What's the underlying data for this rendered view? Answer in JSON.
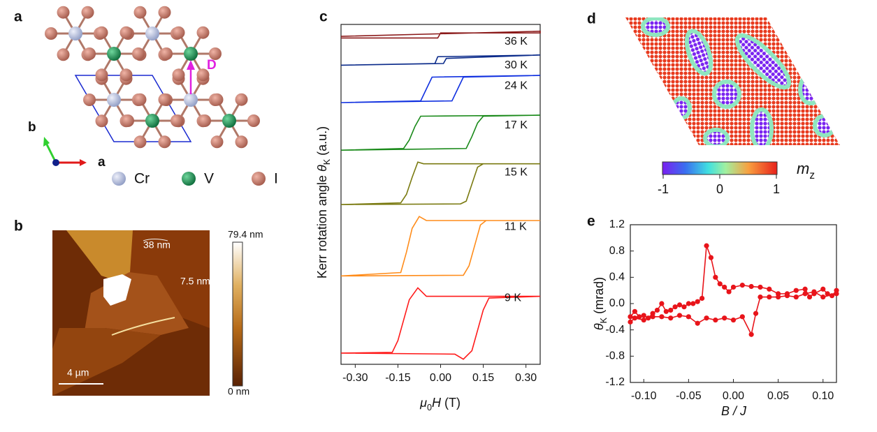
{
  "panel_labels": [
    "a",
    "b",
    "c",
    "d",
    "e"
  ],
  "panel_a": {
    "axis_labels": {
      "b": "b",
      "a": "a"
    },
    "dmi_label": "D",
    "legend": [
      "Cr",
      "V",
      "I"
    ]
  },
  "panel_b": {
    "colorbar_max": "79.4 nm",
    "colorbar_min": "0 nm",
    "scale_bar": "4 µm",
    "heights": [
      "38 nm",
      "7.5 nm"
    ]
  },
  "panel_d": {
    "colorbar": {
      "range": [
        -1,
        1
      ],
      "ticks": [
        -1,
        0,
        1
      ],
      "label": {
        "symbol": "m",
        "subscript": "z"
      }
    }
  },
  "chart_data": [
    {
      "type": "line",
      "y_label": {
        "text": "Kerr rotation angle",
        "symbol": "θ",
        "subscript": "K",
        "unit": "(a.u.)"
      },
      "x_label": {
        "symbol": "μ",
        "subscript": "0",
        "variable": "H",
        "unit": "(T)"
      },
      "xlim": [
        -0.35,
        0.35
      ],
      "xticks": [
        {
          "value": -0.3,
          "label": "-0.30"
        },
        {
          "value": -0.15,
          "label": "-0.15"
        },
        {
          "value": 0,
          "label": "0.00"
        },
        {
          "value": 0.15,
          "label": "0.15"
        },
        {
          "value": 0.3,
          "label": "0.30"
        }
      ],
      "ylim": [
        0,
        10
      ],
      "series": [
        {
          "name": "36 K",
          "color": "#8b1a1a",
          "x": [
            -0.35,
            -0.01,
            0.0,
            0.35,
            0.35,
            -0.35
          ],
          "values": [
            9.6,
            9.6,
            9.75,
            9.75,
            9.8,
            9.65
          ]
        },
        {
          "name": "30 K",
          "color": "#0a2a8a",
          "x": [
            -0.35,
            -0.02,
            -0.01,
            0.35,
            0.35,
            0.02,
            0.01,
            -0.35
          ],
          "values": [
            8.8,
            8.85,
            9.05,
            9.1,
            9.1,
            9.0,
            8.85,
            8.8
          ]
        },
        {
          "name": "24 K",
          "color": "#1030e0",
          "x": [
            0.35,
            -0.03,
            -0.05,
            -0.07,
            -0.35,
            -0.35,
            0.04,
            0.06,
            0.08,
            0.35
          ],
          "values": [
            8.5,
            8.45,
            8.1,
            7.75,
            7.7,
            7.7,
            7.75,
            8.1,
            8.45,
            8.5
          ]
        },
        {
          "name": "17 K",
          "color": "#1a8a1a",
          "x": [
            0.35,
            -0.07,
            -0.09,
            -0.11,
            -0.13,
            -0.35,
            -0.35,
            0.09,
            0.11,
            0.13,
            0.15,
            0.35
          ],
          "values": [
            7.33,
            7.3,
            7.0,
            6.6,
            6.35,
            6.3,
            6.3,
            6.35,
            6.7,
            7.1,
            7.3,
            7.33
          ]
        },
        {
          "name": "15 K",
          "color": "#7a7a10",
          "x": [
            0.35,
            -0.06,
            -0.08,
            -0.1,
            -0.12,
            -0.14,
            -0.35,
            -0.35,
            0.07,
            0.09,
            0.11,
            0.13,
            0.15,
            0.35
          ],
          "values": [
            5.9,
            5.9,
            5.95,
            5.5,
            5.0,
            4.75,
            4.7,
            4.7,
            4.72,
            4.8,
            5.3,
            5.8,
            5.9,
            5.9
          ]
        },
        {
          "name": "11 K",
          "color": "#ff8c1a",
          "x": [
            0.35,
            -0.05,
            -0.075,
            -0.1,
            -0.12,
            -0.14,
            -0.35,
            -0.35,
            0.08,
            0.1,
            0.12,
            0.14,
            0.16,
            0.35
          ],
          "values": [
            4.23,
            4.23,
            4.35,
            4.0,
            3.3,
            2.7,
            2.6,
            2.6,
            2.62,
            2.9,
            3.5,
            4.1,
            4.23,
            4.23
          ]
        },
        {
          "name": "9 K",
          "color": "#ff1a1a",
          "x": [
            0.35,
            -0.05,
            -0.08,
            -0.11,
            -0.13,
            -0.15,
            -0.17,
            -0.35,
            -0.35,
            0.05,
            0.08,
            0.11,
            0.13,
            0.15,
            0.17,
            0.35
          ],
          "values": [
            2.0,
            2.0,
            2.25,
            1.9,
            1.3,
            0.7,
            0.35,
            0.33,
            0.33,
            0.3,
            0.15,
            0.4,
            1.0,
            1.6,
            1.95,
            2.0
          ]
        }
      ]
    },
    {
      "type": "line",
      "marker": "circle",
      "y_label": {
        "symbol": "θ",
        "subscript": "K",
        "unit": "(mrad)"
      },
      "x_label": "B / J",
      "xlim": [
        -0.115,
        0.115
      ],
      "xticks": [
        {
          "value": -0.1,
          "label": "-0.10"
        },
        {
          "value": -0.05,
          "label": "-0.05"
        },
        {
          "value": 0,
          "label": "0.00"
        },
        {
          "value": 0.05,
          "label": "0.05"
        },
        {
          "value": 0.1,
          "label": "0.10"
        }
      ],
      "ylim": [
        -1.2,
        1.2
      ],
      "yticks": [
        1.2,
        0.8,
        0.4,
        {
          "value": 0,
          "label": "0.0"
        },
        -0.4,
        -0.8,
        -1.2
      ],
      "series": [
        {
          "color": "#e8141a",
          "x": [
            -0.115,
            -0.11,
            -0.105,
            -0.1,
            -0.095,
            -0.09,
            -0.085,
            -0.08,
            -0.075,
            -0.07,
            -0.065,
            -0.06,
            -0.055,
            -0.05,
            -0.045,
            -0.04,
            -0.035,
            -0.03,
            -0.025,
            -0.02,
            -0.015,
            -0.01,
            -0.005,
            0.0,
            0.01,
            0.02,
            0.03,
            0.04,
            0.05,
            0.06,
            0.07,
            0.08,
            0.085,
            0.09,
            0.1,
            0.105,
            0.11,
            0.115,
            0.115,
            0.1,
            0.09,
            0.08,
            0.07,
            0.06,
            0.05,
            0.04,
            0.03,
            0.025,
            0.02,
            0.01,
            0.0,
            -0.01,
            -0.02,
            -0.03,
            -0.04,
            -0.05,
            -0.06,
            -0.07,
            -0.08,
            -0.09,
            -0.1,
            -0.11,
            -0.115
          ],
          "values": [
            -0.2,
            -0.12,
            -0.2,
            -0.18,
            -0.22,
            -0.15,
            -0.1,
            0.0,
            -0.12,
            -0.1,
            -0.05,
            -0.02,
            -0.05,
            0.0,
            0.0,
            0.03,
            0.08,
            0.88,
            0.7,
            0.4,
            0.3,
            0.25,
            0.18,
            0.25,
            0.28,
            0.26,
            0.25,
            0.22,
            0.15,
            0.15,
            0.2,
            0.22,
            0.1,
            0.15,
            0.22,
            0.15,
            0.12,
            0.2,
            0.15,
            0.1,
            0.18,
            0.15,
            0.1,
            0.12,
            0.1,
            0.1,
            0.1,
            -0.15,
            -0.47,
            -0.2,
            -0.25,
            -0.22,
            -0.25,
            -0.22,
            -0.3,
            -0.2,
            -0.18,
            -0.22,
            -0.2,
            -0.2,
            -0.25,
            -0.22,
            -0.28
          ]
        }
      ]
    }
  ]
}
